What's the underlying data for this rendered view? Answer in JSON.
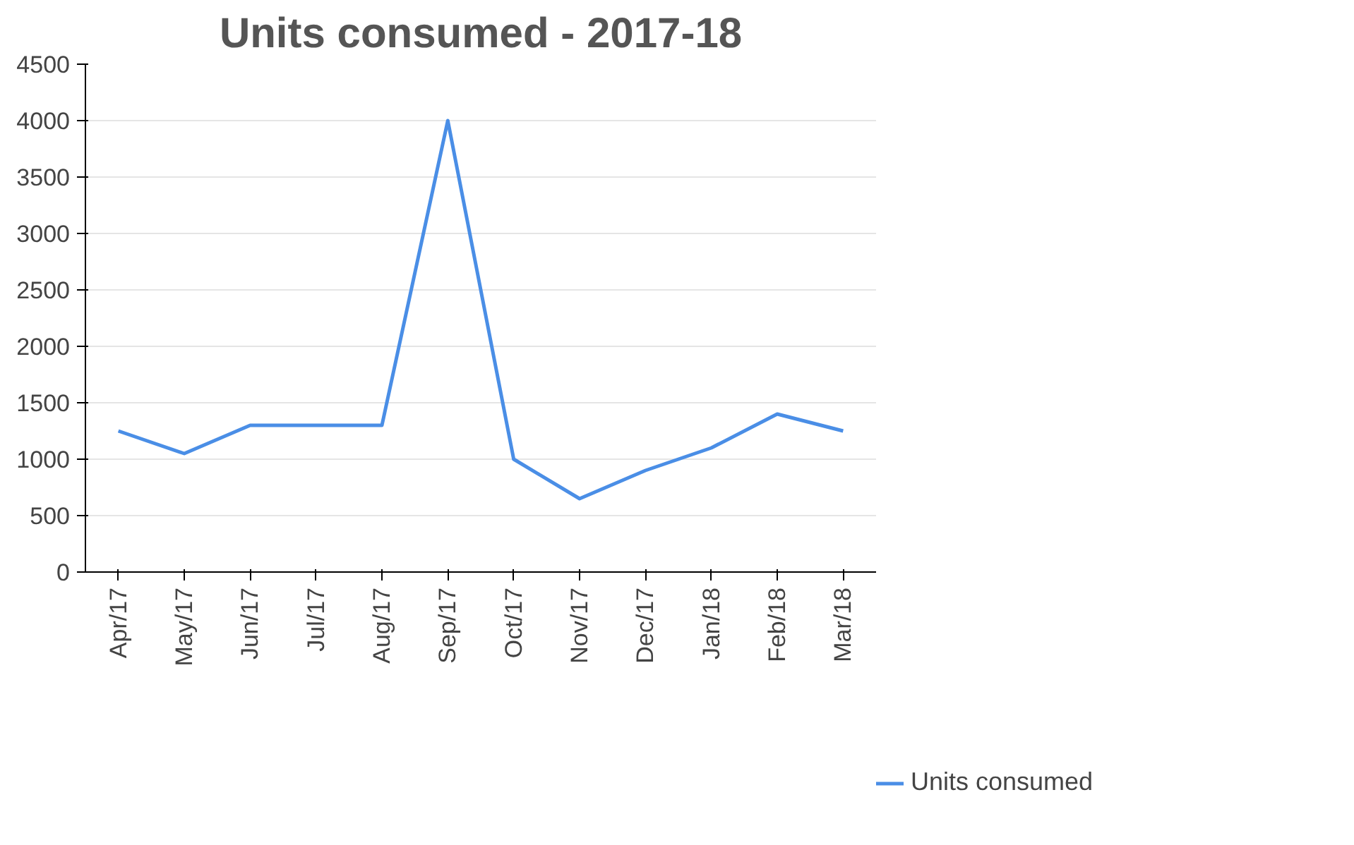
{
  "chart_data": {
    "type": "line",
    "title": "Units consumed - 2017-18",
    "categories": [
      "Apr/17",
      "May/17",
      "Jun/17",
      "Jul/17",
      "Aug/17",
      "Sep/17",
      "Oct/17",
      "Nov/17",
      "Dec/17",
      "Jan/18",
      "Feb/18",
      "Mar/18"
    ],
    "series": [
      {
        "name": "Units consumed",
        "color": "#4a8ee6",
        "values": [
          1250,
          1050,
          1300,
          1300,
          1300,
          4000,
          1000,
          650,
          900,
          1100,
          1400,
          1250
        ]
      }
    ],
    "ylim": [
      0,
      4500
    ],
    "yticks": [
      0,
      500,
      1000,
      1500,
      2000,
      2500,
      3000,
      3500,
      4000,
      4500
    ],
    "grid": "y",
    "legend": "right",
    "marker": "none",
    "line_style": "solid"
  }
}
